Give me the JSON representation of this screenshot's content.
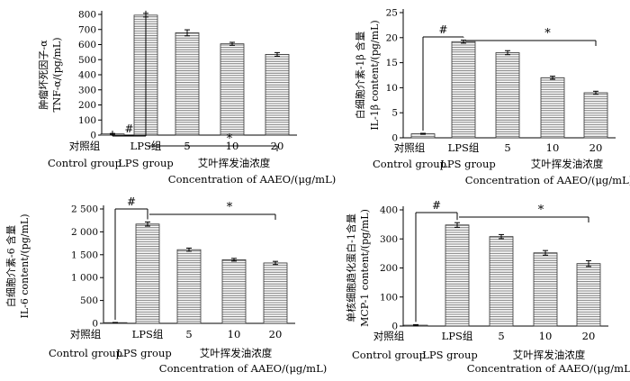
{
  "colors": {
    "ink": "#000000",
    "hatch": "#555555",
    "background": "#ffffff"
  },
  "chart_data": [
    {
      "type": "bar",
      "ylabel": [
        "肿瘤坏死因子-α",
        "TNF-α/(pg/mL)"
      ],
      "categories": [
        "对照组",
        "LPS组",
        "5",
        "10",
        "20"
      ],
      "category_sublabels": {
        "control": "Control group",
        "lps": "LPS group",
        "group": "艾叶挥发油浓度",
        "concentration": "Concentration of AAEO/(μg/mL)"
      },
      "values": [
        8,
        795,
        678,
        605,
        535
      ],
      "errors": [
        3,
        12,
        20,
        10,
        12
      ],
      "yticks": [
        "0",
        "100",
        "200",
        "300",
        "400",
        "500",
        "600",
        "700",
        "800"
      ],
      "ylim": [
        0,
        800
      ],
      "annotations": [
        "#",
        "*"
      ],
      "grid": false
    },
    {
      "type": "bar",
      "ylabel": [
        "白细胞介素-1β 含量",
        "IL-1β content/(pg/mL)"
      ],
      "categories": [
        "对照组",
        "LPS组",
        "5",
        "10",
        "20"
      ],
      "category_sublabels": {
        "control": "Control group",
        "lps": "LPS group",
        "group": "艾叶挥发油浓度",
        "concentration": "Concentration of AAEO/(μg/mL)"
      },
      "values": [
        0.8,
        19.2,
        17.0,
        12.0,
        9.0
      ],
      "errors": [
        0.1,
        0.3,
        0.4,
        0.3,
        0.3
      ],
      "yticks": [
        "0",
        "5",
        "10",
        "15",
        "20",
        "25"
      ],
      "ylim": [
        0,
        25
      ],
      "annotations": [
        "#",
        "*"
      ],
      "grid": false
    },
    {
      "type": "bar",
      "ylabel": [
        "白细胞介素-6 含量",
        "IL-6 content/(pg/mL)"
      ],
      "categories": [
        "对照组",
        "LPS组",
        "5",
        "10",
        "20"
      ],
      "category_sublabels": {
        "control": "Control group",
        "lps": "LPS group",
        "group": "艾叶挥发油浓度",
        "concentration": "Concentration of AAEO/(μg/mL)"
      },
      "values": [
        15,
        2170,
        1610,
        1390,
        1320
      ],
      "errors": [
        5,
        45,
        35,
        30,
        35
      ],
      "yticks": [
        "0",
        "500",
        "1 000",
        "1 500",
        "2 000",
        "2 500"
      ],
      "ylim": [
        0,
        2500
      ],
      "annotations": [
        "#",
        "*"
      ],
      "grid": false
    },
    {
      "type": "bar",
      "ylabel": [
        "单核细胞趋化蛋白-1含量",
        "MCP-1 content/(pg/mL)"
      ],
      "categories": [
        "对照组",
        "LPS组",
        "5",
        "10",
        "20"
      ],
      "category_sublabels": {
        "control": "Control group",
        "lps": "LPS group",
        "group": "艾叶挥发油浓度",
        "concentration": "Concentration of AAEO/(μg/mL)"
      },
      "values": [
        3,
        348,
        308,
        252,
        215
      ],
      "errors": [
        2,
        8,
        7,
        8,
        10
      ],
      "yticks": [
        "0",
        "100",
        "200",
        "300",
        "400"
      ],
      "ylim": [
        0,
        400
      ],
      "annotations": [
        "#",
        "*"
      ],
      "grid": false
    }
  ]
}
